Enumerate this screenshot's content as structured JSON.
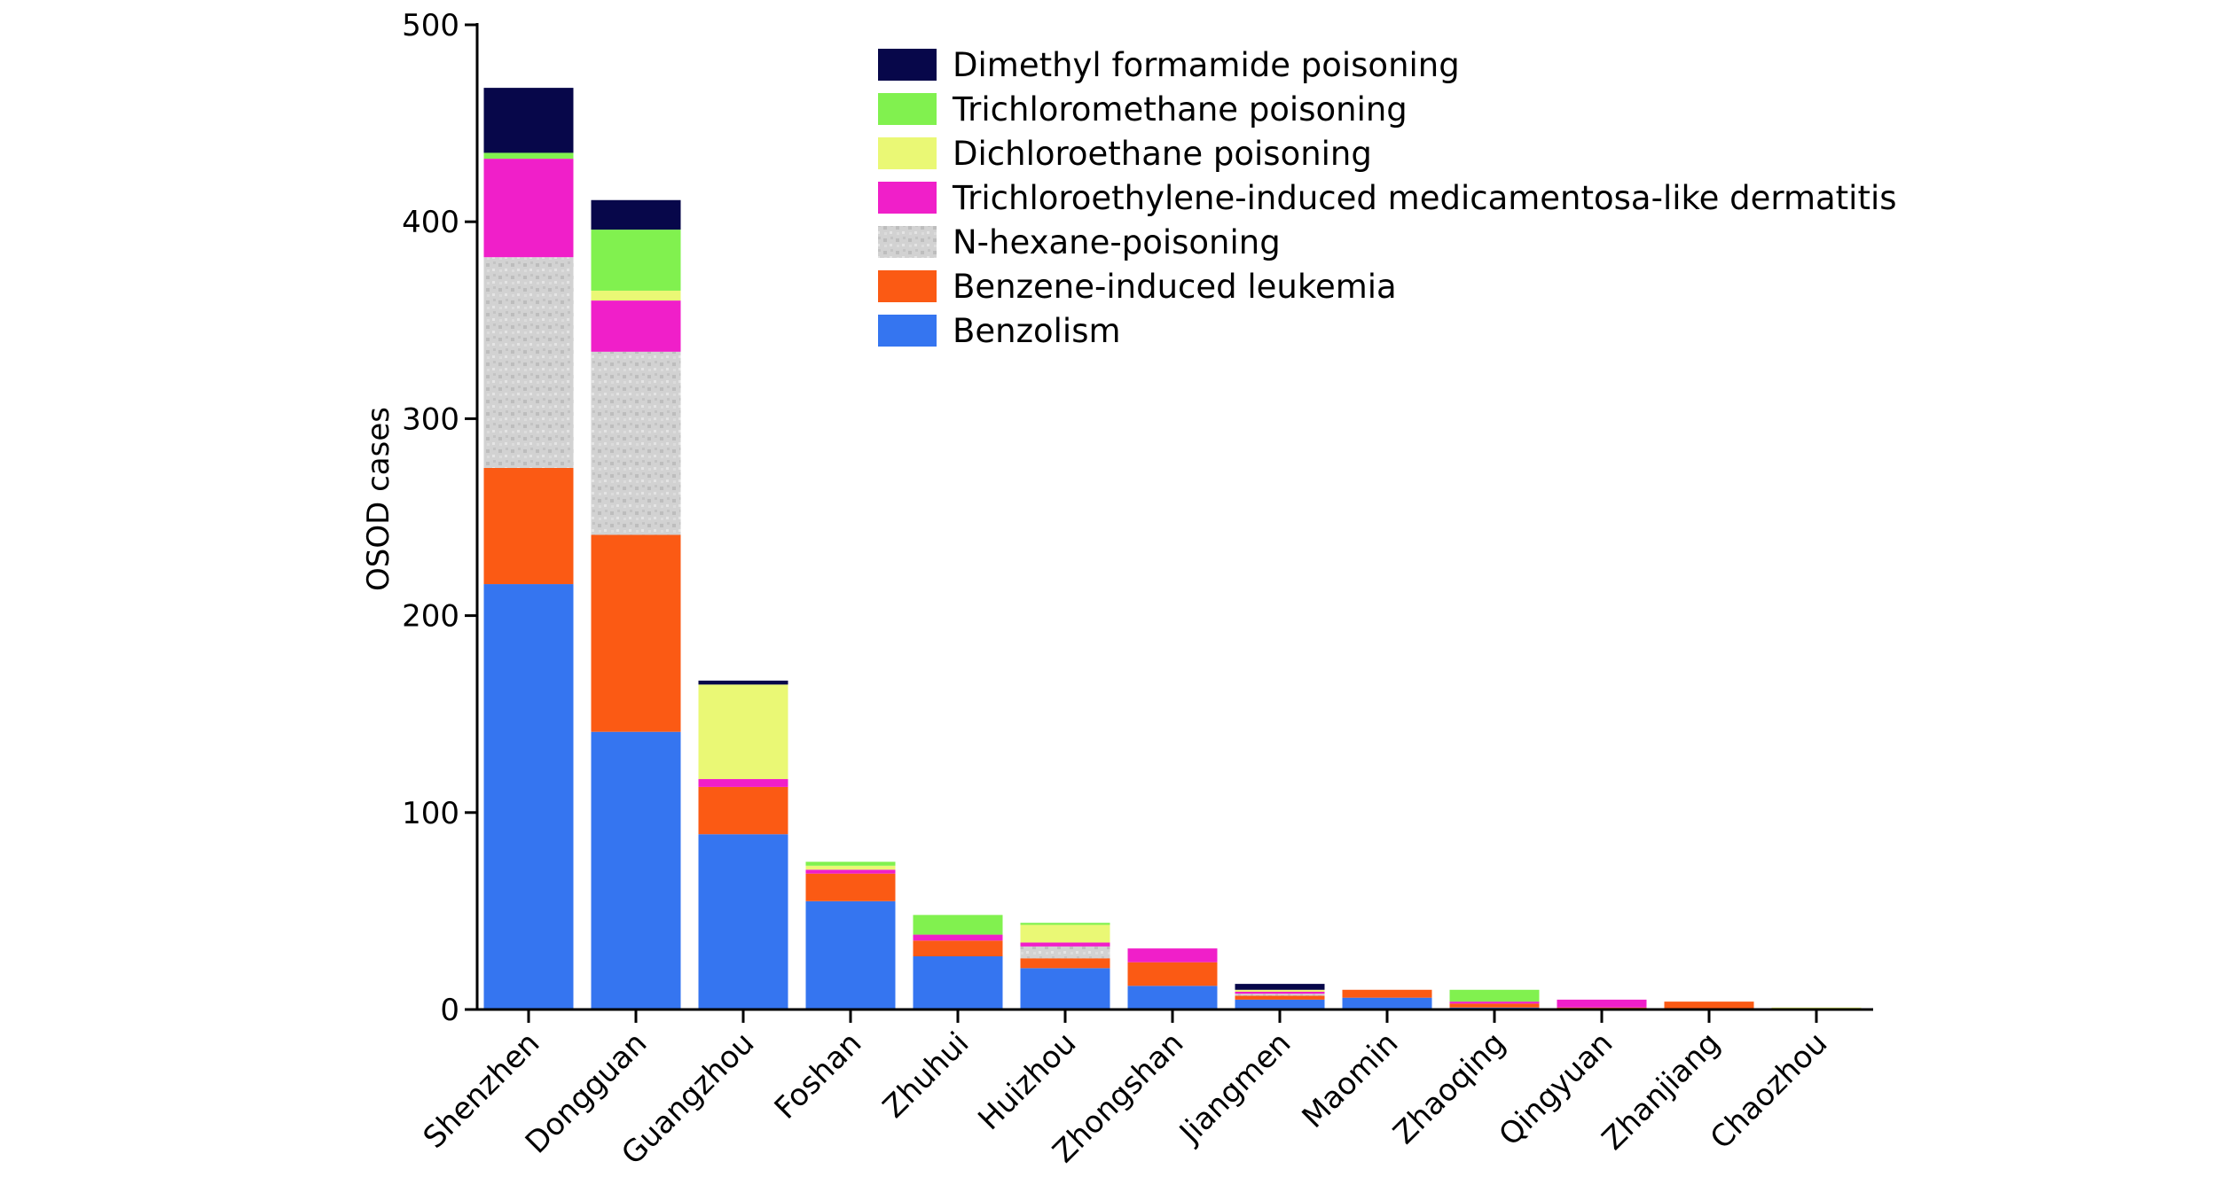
{
  "chart_data": {
    "type": "bar",
    "stacked": true,
    "ylabel": "OSOD cases",
    "xlabel": "",
    "ylim": [
      0,
      500
    ],
    "yticks": [
      0,
      100,
      200,
      300,
      400,
      500
    ],
    "legend_position": "top-right",
    "categories": [
      "Shenzhen",
      "Dongguan",
      "Guangzhou",
      "Foshan",
      "Zhuhui",
      "Huizhou",
      "Zhongshan",
      "Jiangmen",
      "Maomin",
      "Zhaoqing",
      "Qingyuan",
      "Zhanjiang",
      "Chaozhou"
    ],
    "series": [
      {
        "name": "Benzolism",
        "color": "#3575f0",
        "values": [
          216,
          141,
          89,
          55,
          27,
          21,
          12,
          5,
          6,
          1,
          0,
          0,
          0
        ]
      },
      {
        "name": "Benzene-induced leukemia",
        "color": "#fb5a14",
        "values": [
          59,
          100,
          24,
          14,
          8,
          5,
          12,
          2,
          4,
          2,
          1,
          4,
          0
        ]
      },
      {
        "name": "N-hexane-poisoning",
        "color": "#d0d0d0",
        "values": [
          107,
          93,
          0,
          0,
          0,
          6,
          0,
          1,
          0,
          0,
          0,
          0,
          0
        ]
      },
      {
        "name": "Trichloroethylene-induced medicamentosa-like dermatitis",
        "color": "#f01fc9",
        "values": [
          50,
          26,
          4,
          2,
          3,
          2,
          7,
          1,
          0,
          1,
          4,
          0,
          0
        ]
      },
      {
        "name": "Dichloroethane poisoning",
        "color": "#eaf875",
        "values": [
          0,
          5,
          48,
          2,
          0,
          9,
          0,
          1,
          0,
          0,
          0,
          0,
          1
        ]
      },
      {
        "name": "Trichloromethane poisoning",
        "color": "#81f14f",
        "values": [
          3,
          31,
          0,
          2,
          10,
          1,
          0,
          0,
          0,
          6,
          0,
          0,
          0
        ]
      },
      {
        "name": "Dimethyl formamide poisoning",
        "color": "#07074a",
        "values": [
          33,
          15,
          2,
          0,
          0,
          0,
          0,
          3,
          0,
          0,
          0,
          0,
          0
        ]
      }
    ],
    "legend_order": [
      "Dimethyl formamide poisoning",
      "Trichloromethane poisoning",
      "Dichloroethane poisoning",
      "Trichloroethylene-induced medicamentosa-like dermatitis",
      "N-hexane-poisoning",
      "Benzene-induced leukemia",
      "Benzolism"
    ]
  }
}
